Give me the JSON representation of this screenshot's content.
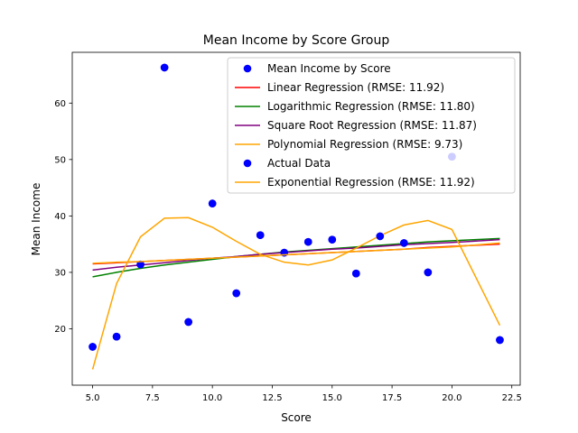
{
  "chart_data": {
    "type": "scatter",
    "title": "Mean Income by Score Group",
    "xlabel": "Score",
    "ylabel": "Mean Income",
    "xlim": [
      4.15,
      22.85
    ],
    "ylim": [
      10.0,
      69.0
    ],
    "xticks": [
      5.0,
      7.5,
      10.0,
      12.5,
      15.0,
      17.5,
      20.0,
      22.5
    ],
    "xtick_labels": [
      "5.0",
      "7.5",
      "10.0",
      "12.5",
      "15.0",
      "17.5",
      "20.0",
      "22.5"
    ],
    "yticks": [
      20,
      30,
      40,
      50,
      60
    ],
    "ytick_labels": [
      "20",
      "30",
      "40",
      "50",
      "60"
    ],
    "grid": false,
    "legend_position": "top-right",
    "x": [
      5,
      6,
      7,
      8,
      9,
      10,
      11,
      12,
      13,
      14,
      15,
      16,
      17,
      18,
      19,
      20,
      22
    ],
    "series": [
      {
        "name": "Mean Income by Score",
        "kind": "scatter",
        "color": "#0000ff",
        "values": [
          16.8,
          18.6,
          31.4,
          66.3,
          21.2,
          42.2,
          26.3,
          36.6,
          33.5,
          35.4,
          35.8,
          29.8,
          36.4,
          35.2,
          30.0,
          50.5,
          18.0
        ]
      },
      {
        "name": "Linear Regression (RMSE: 11.92)",
        "kind": "line",
        "color": "#ff0000",
        "values": [
          31.5,
          31.7,
          31.9,
          32.1,
          32.3,
          32.5,
          32.7,
          32.9,
          33.1,
          33.3,
          33.5,
          33.7,
          33.9,
          34.1,
          34.4,
          34.6,
          35.0
        ]
      },
      {
        "name": "Logarithmic Regression (RMSE: 11.80)",
        "kind": "line",
        "color": "#008000",
        "values": [
          29.2,
          30.0,
          30.7,
          31.3,
          31.8,
          32.3,
          32.8,
          33.2,
          33.6,
          33.9,
          34.2,
          34.5,
          34.8,
          35.1,
          35.4,
          35.6,
          36.0
        ]
      },
      {
        "name": "Square Root Regression (RMSE: 11.87)",
        "kind": "line",
        "color": "#800080",
        "values": [
          30.4,
          30.9,
          31.3,
          31.7,
          32.1,
          32.5,
          32.8,
          33.2,
          33.5,
          33.8,
          34.1,
          34.3,
          34.6,
          34.9,
          35.1,
          35.3,
          35.8
        ]
      },
      {
        "name": "Polynomial Regression (RMSE: 9.73)",
        "kind": "line",
        "color": "#ffa500",
        "values": [
          12.8,
          28.0,
          36.3,
          39.6,
          39.7,
          38.0,
          35.5,
          33.2,
          31.8,
          31.3,
          32.2,
          34.3,
          36.5,
          38.4,
          39.2,
          37.6,
          20.6
        ]
      },
      {
        "name": "Actual Data",
        "kind": "scatter",
        "color": "#0000ff",
        "values": [
          16.8,
          18.6,
          31.4,
          66.3,
          21.2,
          42.2,
          26.3,
          36.6,
          33.5,
          35.4,
          35.8,
          29.8,
          36.4,
          35.2,
          30.0,
          50.5,
          18.0
        ]
      },
      {
        "name": "Exponential Regression (RMSE: 11.92)",
        "kind": "line",
        "color": "#ffa500",
        "values": [
          31.6,
          31.8,
          31.9,
          32.1,
          32.3,
          32.5,
          32.7,
          32.9,
          33.1,
          33.3,
          33.5,
          33.7,
          33.9,
          34.1,
          34.3,
          34.5,
          35.2
        ]
      }
    ]
  }
}
